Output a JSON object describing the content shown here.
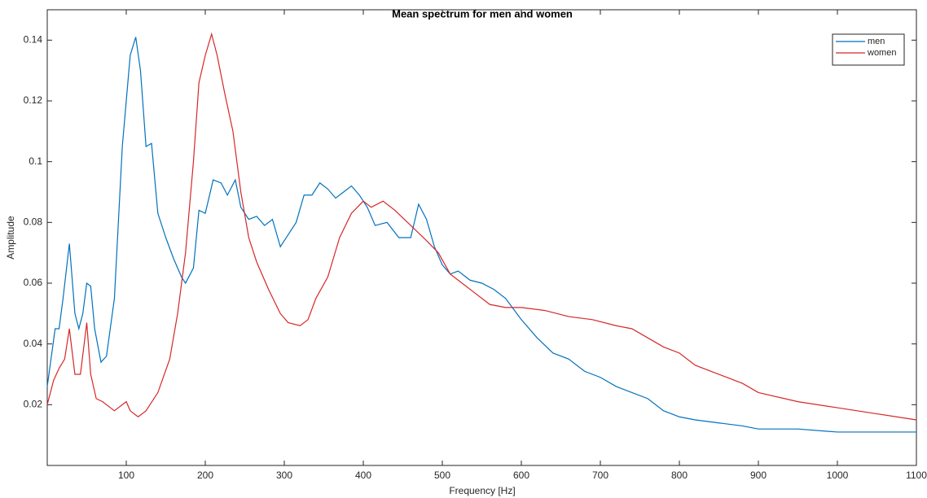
{
  "chart_data": {
    "type": "line",
    "title": "Mean spectrum for men and women",
    "xlabel": "Frequency [Hz]",
    "ylabel": "Amplitude",
    "xlim": [
      0,
      1100
    ],
    "ylim": [
      0,
      0.15
    ],
    "xticks": [
      100,
      200,
      300,
      400,
      500,
      600,
      700,
      800,
      900,
      1000,
      1100
    ],
    "yticks": [
      0.02,
      0.04,
      0.06,
      0.08,
      0.1,
      0.12,
      0.14
    ],
    "grid": false,
    "legend": "upper right",
    "series": [
      {
        "name": "men",
        "color": "#0072bd",
        "x": [
          0,
          10,
          15,
          20,
          28,
          35,
          40,
          45,
          50,
          55,
          60,
          68,
          75,
          85,
          95,
          105,
          112,
          118,
          125,
          132,
          140,
          150,
          160,
          170,
          175,
          185,
          192,
          200,
          210,
          220,
          228,
          238,
          245,
          255,
          265,
          275,
          285,
          295,
          305,
          315,
          325,
          335,
          345,
          355,
          365,
          375,
          385,
          395,
          405,
          415,
          430,
          445,
          460,
          470,
          480,
          490,
          500,
          510,
          520,
          535,
          550,
          565,
          580,
          600,
          620,
          640,
          660,
          680,
          700,
          720,
          740,
          760,
          780,
          800,
          820,
          850,
          880,
          900,
          950,
          1000,
          1050,
          1100
        ],
        "values": [
          0.026,
          0.045,
          0.045,
          0.055,
          0.073,
          0.05,
          0.045,
          0.05,
          0.06,
          0.059,
          0.045,
          0.034,
          0.036,
          0.055,
          0.105,
          0.135,
          0.141,
          0.13,
          0.105,
          0.106,
          0.083,
          0.075,
          0.068,
          0.062,
          0.06,
          0.065,
          0.084,
          0.083,
          0.094,
          0.093,
          0.089,
          0.094,
          0.085,
          0.081,
          0.082,
          0.079,
          0.081,
          0.072,
          0.076,
          0.08,
          0.089,
          0.089,
          0.093,
          0.091,
          0.088,
          0.09,
          0.092,
          0.089,
          0.085,
          0.079,
          0.08,
          0.075,
          0.075,
          0.086,
          0.081,
          0.072,
          0.066,
          0.063,
          0.064,
          0.061,
          0.06,
          0.058,
          0.055,
          0.048,
          0.042,
          0.037,
          0.035,
          0.031,
          0.029,
          0.026,
          0.024,
          0.022,
          0.018,
          0.016,
          0.015,
          0.014,
          0.013,
          0.012,
          0.012,
          0.011,
          0.011,
          0.011
        ]
      },
      {
        "name": "women",
        "color": "#d62728",
        "x": [
          0,
          8,
          15,
          22,
          28,
          35,
          42,
          50,
          55,
          62,
          70,
          85,
          100,
          105,
          115,
          125,
          140,
          155,
          165,
          175,
          185,
          192,
          200,
          208,
          215,
          225,
          235,
          245,
          255,
          265,
          280,
          295,
          305,
          320,
          330,
          340,
          355,
          370,
          385,
          400,
          410,
          425,
          440,
          460,
          480,
          495,
          510,
          525,
          540,
          560,
          580,
          600,
          630,
          660,
          690,
          720,
          740,
          760,
          780,
          800,
          820,
          840,
          860,
          880,
          900,
          950,
          1000,
          1050,
          1100
        ],
        "values": [
          0.02,
          0.028,
          0.032,
          0.035,
          0.045,
          0.03,
          0.03,
          0.047,
          0.03,
          0.022,
          0.021,
          0.018,
          0.021,
          0.018,
          0.016,
          0.018,
          0.024,
          0.035,
          0.05,
          0.07,
          0.1,
          0.126,
          0.135,
          0.142,
          0.135,
          0.122,
          0.11,
          0.09,
          0.075,
          0.067,
          0.058,
          0.05,
          0.047,
          0.046,
          0.048,
          0.055,
          0.062,
          0.075,
          0.083,
          0.087,
          0.085,
          0.087,
          0.084,
          0.079,
          0.074,
          0.07,
          0.063,
          0.06,
          0.057,
          0.053,
          0.052,
          0.052,
          0.051,
          0.049,
          0.048,
          0.046,
          0.045,
          0.042,
          0.039,
          0.037,
          0.033,
          0.031,
          0.029,
          0.027,
          0.024,
          0.021,
          0.019,
          0.017,
          0.015
        ]
      }
    ]
  }
}
